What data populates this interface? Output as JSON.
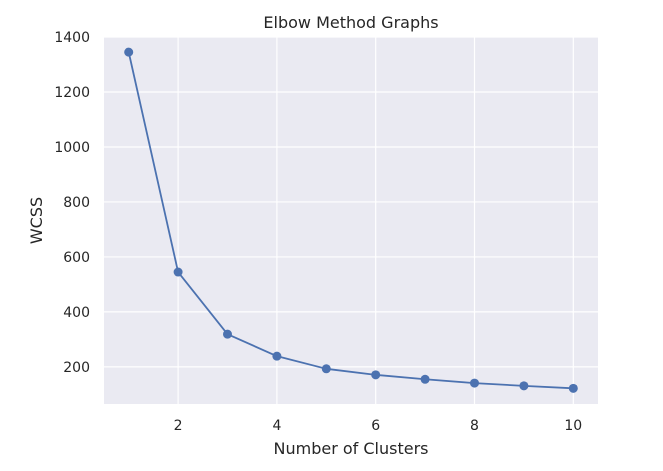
{
  "chart_data": {
    "type": "line",
    "title": "Elbow Method Graphs",
    "xlabel": "Number of Clusters",
    "ylabel": "WCSS",
    "x": [
      1,
      2,
      3,
      4,
      5,
      6,
      7,
      8,
      9,
      10
    ],
    "series": [
      {
        "values": [
          1345,
          545,
          319,
          239,
          193,
          171,
          155,
          141,
          131,
          122
        ]
      }
    ],
    "xlim": [
      0.5,
      10.5
    ],
    "ylim": [
      65,
      1400
    ],
    "xticks": [
      2,
      4,
      6,
      8,
      10
    ],
    "yticks": [
      200,
      400,
      600,
      800,
      1000,
      1200,
      1400
    ],
    "grid": true,
    "colors": {
      "background": "#eaeaf2",
      "grid": "#ffffff",
      "line": "#4c72b0"
    }
  }
}
